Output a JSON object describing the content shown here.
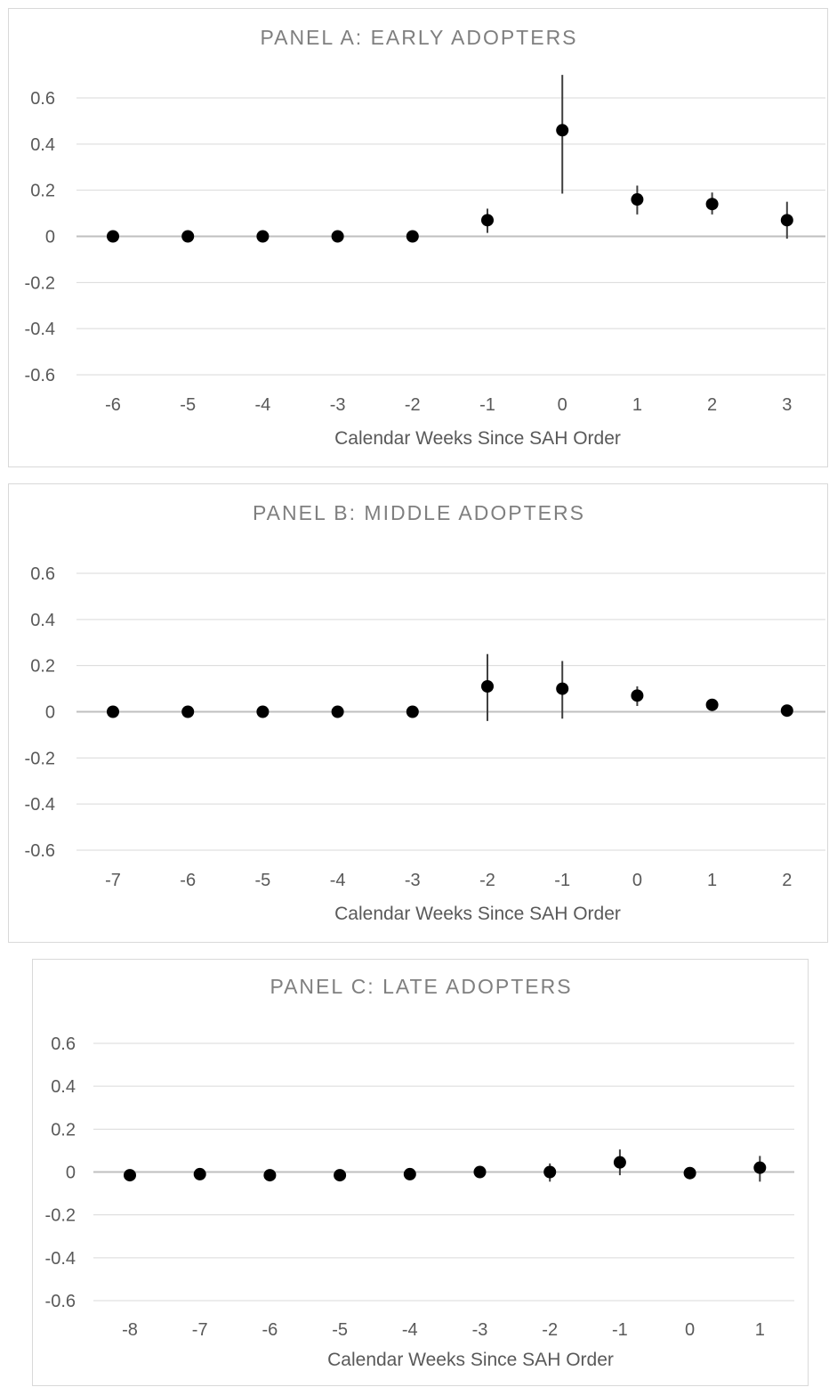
{
  "chart_data": [
    {
      "type": "scatter",
      "title": "PANEL A: EARLY ADOPTERS",
      "xlabel": "Calendar Weeks Since SAH Order",
      "ylabel": "",
      "ylim": [
        -0.6,
        0.6
      ],
      "yticks": [
        "0.6",
        "0.4",
        "0.2",
        "0",
        "-0.2",
        "-0.4",
        "-0.6"
      ],
      "categories": [
        "-6",
        "-5",
        "-4",
        "-3",
        "-2",
        "-1",
        "0",
        "1",
        "2",
        "3"
      ],
      "values": [
        0.0,
        0.0,
        0.0,
        0.0,
        0.0,
        0.07,
        0.46,
        0.16,
        0.14,
        0.07
      ],
      "error_low": [
        0.0,
        0.0,
        0.0,
        0.0,
        0.0,
        0.015,
        0.185,
        0.095,
        0.095,
        -0.01
      ],
      "error_high": [
        0.0,
        0.0,
        0.0,
        0.0,
        0.0,
        0.12,
        0.7,
        0.22,
        0.19,
        0.15
      ],
      "grid": true,
      "marker_color": "#000000"
    },
    {
      "type": "scatter",
      "title": "PANEL B: MIDDLE ADOPTERS",
      "xlabel": "Calendar Weeks Since SAH Order",
      "ylabel": "",
      "ylim": [
        -0.6,
        0.6
      ],
      "yticks": [
        "0.6",
        "0.4",
        "0.2",
        "0",
        "-0.2",
        "-0.4",
        "-0.6"
      ],
      "categories": [
        "-7",
        "-6",
        "-5",
        "-4",
        "-3",
        "-2",
        "-1",
        "0",
        "1",
        "2"
      ],
      "values": [
        0.0,
        0.0,
        0.0,
        0.0,
        0.0,
        0.11,
        0.1,
        0.07,
        0.03,
        0.005
      ],
      "error_low": [
        0.0,
        0.0,
        0.0,
        0.0,
        0.0,
        -0.04,
        -0.03,
        0.025,
        0.03,
        0.005
      ],
      "error_high": [
        0.0,
        0.0,
        0.0,
        0.0,
        0.0,
        0.25,
        0.22,
        0.11,
        0.03,
        0.005
      ],
      "grid": true,
      "marker_color": "#000000"
    },
    {
      "type": "scatter",
      "title": "PANEL C: LATE ADOPTERS",
      "xlabel": "Calendar Weeks Since SAH Order",
      "ylabel": "",
      "ylim": [
        -0.6,
        0.6
      ],
      "yticks": [
        "0.6",
        "0.4",
        "0.2",
        "0",
        "-0.2",
        "-0.4",
        "-0.6"
      ],
      "categories": [
        "-8",
        "-7",
        "-6",
        "-5",
        "-4",
        "-3",
        "-2",
        "-1",
        "0",
        "1"
      ],
      "values": [
        -0.015,
        -0.01,
        -0.015,
        -0.015,
        -0.01,
        0.0,
        0.0,
        0.045,
        -0.005,
        0.02
      ],
      "error_low": [
        -0.015,
        -0.01,
        -0.015,
        -0.015,
        -0.01,
        0.0,
        -0.045,
        -0.015,
        -0.005,
        -0.045
      ],
      "error_high": [
        -0.015,
        -0.01,
        -0.015,
        -0.015,
        -0.01,
        0.0,
        0.04,
        0.105,
        -0.005,
        0.075
      ],
      "grid": true,
      "marker_color": "#000000"
    }
  ]
}
